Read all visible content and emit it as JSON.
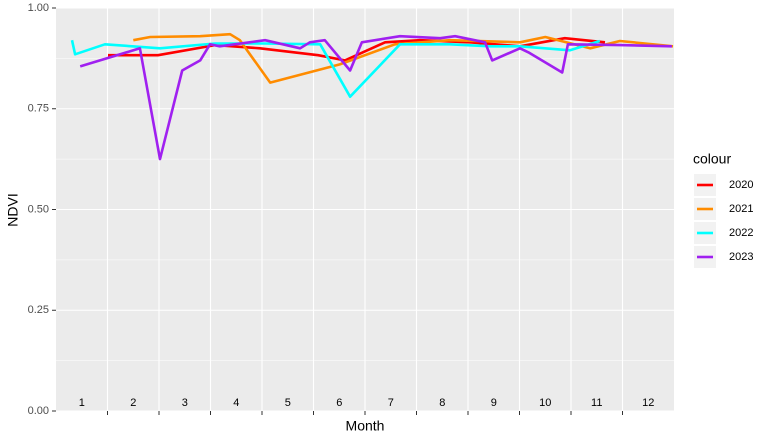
{
  "chart_data": {
    "type": "line",
    "x_label": "Month",
    "y_label": "NDVI",
    "xlim": [
      0,
      12
    ],
    "xticks": [
      1,
      2,
      3,
      4,
      5,
      6,
      7,
      8,
      9,
      10,
      11
    ],
    "ylim": [
      0,
      1
    ],
    "yticks": [
      {
        "value": 0,
        "label": "0.00"
      },
      {
        "value": 0.25,
        "label": "0.25"
      },
      {
        "value": 0.5,
        "label": "0.50"
      },
      {
        "value": 0.75,
        "label": "0.75"
      },
      {
        "value": 1,
        "label": "1.00"
      }
    ],
    "grid": true,
    "annotations": [
      {
        "text": "1",
        "x": 0.5
      },
      {
        "text": "2",
        "x": 1.5
      },
      {
        "text": "3",
        "x": 2.5
      },
      {
        "text": "4",
        "x": 3.5
      },
      {
        "text": "5",
        "x": 4.5
      },
      {
        "text": "6",
        "x": 5.5
      },
      {
        "text": "7",
        "x": 6.5
      },
      {
        "text": "8",
        "x": 7.5
      },
      {
        "text": "9",
        "x": 8.5
      },
      {
        "text": "10",
        "x": 9.5
      },
      {
        "text": "11",
        "x": 10.5
      },
      {
        "text": "12",
        "x": 11.5
      }
    ],
    "annotation_y": 0.02,
    "legend_title": "colour",
    "series": [
      {
        "name": "2020",
        "color": "#ff0000",
        "x": [
          1.01,
          1.98,
          3.09,
          3.96,
          5.09,
          5.61,
          6.39,
          7.07,
          8.04,
          9.01,
          9.88,
          10.66
        ],
        "values": [
          0.883,
          0.883,
          0.908,
          0.9,
          0.883,
          0.87,
          0.915,
          0.92,
          0.915,
          0.905,
          0.925,
          0.915
        ]
      },
      {
        "name": "2021",
        "color": "#ff8c00",
        "x": [
          1.5,
          1.83,
          2.8,
          3.38,
          3.57,
          4.16,
          5.51,
          6.58,
          7.65,
          9.01,
          9.5,
          10.37,
          10.95,
          11.98
        ],
        "values": [
          0.92,
          0.928,
          0.93,
          0.935,
          0.92,
          0.815,
          0.86,
          0.91,
          0.92,
          0.915,
          0.928,
          0.9,
          0.918,
          0.905
        ]
      },
      {
        "name": "2022",
        "color": "#00ffff",
        "x": [
          0.31,
          0.37,
          0.95,
          2.02,
          3.09,
          4.06,
          5.13,
          5.71,
          6.68,
          7.65,
          8.43,
          9.01,
          9.98,
          10.56
        ],
        "values": [
          0.92,
          0.885,
          0.91,
          0.9,
          0.912,
          0.912,
          0.91,
          0.78,
          0.91,
          0.91,
          0.905,
          0.905,
          0.895,
          0.918
        ]
      },
      {
        "name": "2023",
        "color": "#a020f0",
        "x": [
          0.47,
          1.63,
          2.02,
          2.45,
          2.8,
          2.99,
          3.18,
          4.06,
          4.74,
          4.93,
          5.22,
          5.71,
          5.94,
          6.68,
          7.46,
          7.75,
          8.33,
          8.47,
          9.01,
          9.17,
          9.83,
          9.94,
          10.95,
          11.96
        ],
        "values": [
          0.855,
          0.9,
          0.625,
          0.845,
          0.87,
          0.91,
          0.905,
          0.92,
          0.9,
          0.915,
          0.92,
          0.845,
          0.915,
          0.93,
          0.925,
          0.93,
          0.915,
          0.87,
          0.9,
          0.89,
          0.84,
          0.91,
          0.908,
          0.905
        ]
      }
    ]
  }
}
